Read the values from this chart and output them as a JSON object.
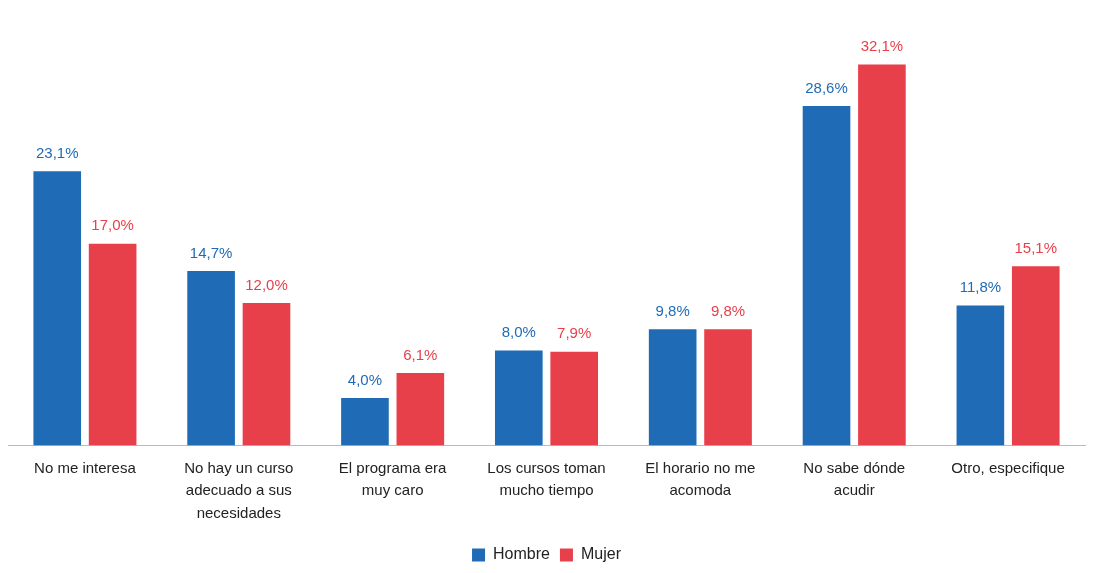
{
  "chart_data": {
    "type": "bar",
    "categories": [
      "No me interesa",
      "No hay un curso adecuado a sus necesidades",
      "El programa era muy caro",
      "Los cursos toman mucho tiempo",
      "El horario no me acomoda",
      "No sabe dónde acudir",
      "Otro, especifique"
    ],
    "series": [
      {
        "name": "Hombre",
        "color": "#1f6bb5",
        "values": [
          23.1,
          14.7,
          4.0,
          8.0,
          9.8,
          28.6,
          11.8
        ],
        "value_labels": [
          "23,1%",
          "14,7%",
          "4,0%",
          "8,0%",
          "9,8%",
          "28,6%",
          "11,8%"
        ]
      },
      {
        "name": "Mujer",
        "color": "#e8404a",
        "values": [
          17.0,
          12.0,
          6.1,
          7.9,
          9.8,
          32.1,
          15.1
        ],
        "value_labels": [
          "17,0%",
          "12,0%",
          "6,1%",
          "7,9%",
          "9,8%",
          "32,1%",
          "15,1%"
        ]
      }
    ],
    "grid": false,
    "legend": "bottom"
  }
}
